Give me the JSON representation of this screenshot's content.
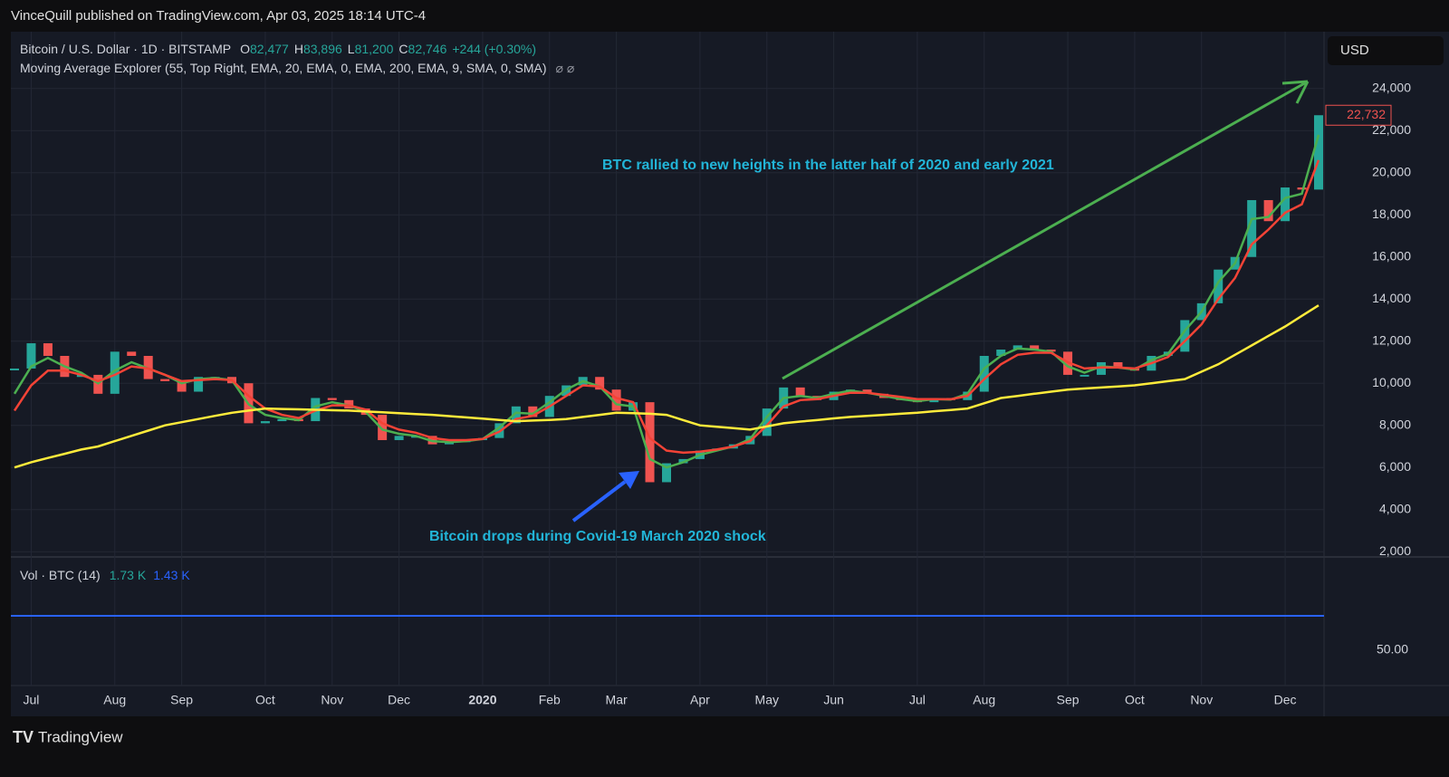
{
  "header": {
    "publisher": "VinceQuill published on TradingView.com, Apr 03, 2025 18:14 UTC-4"
  },
  "footer": {
    "brand": "TradingView"
  },
  "chart_data": {
    "type": "candlestick",
    "symbol": "Bitcoin / U.S. Dollar · 1D · BITSTAMP",
    "ohlc": [
      {
        "key": "O",
        "text": "82,477"
      },
      {
        "key": "H",
        "text": "83,896"
      },
      {
        "key": "L",
        "text": "81,200"
      },
      {
        "key": "C",
        "text": "82,746"
      }
    ],
    "change": "+244 (+0.30%)",
    "indicator": "Moving Average Explorer (55, Top Right, EMA, 20, EMA, 0, EMA, 200, EMA, 9, SMA, 0, SMA)",
    "currency": "USD",
    "last_price_label": "22,732",
    "annotations": [
      "BTC rallied to new heights in the latter half of 2020 and early 2021",
      "Bitcoin drops during Covid-19 March 2020 shock"
    ],
    "volume_pane": {
      "title": "Vol · BTC (14)",
      "values": [
        "1.73 K",
        "1.43 K"
      ],
      "axis_label": "50.00"
    },
    "categories": [
      null,
      "Jul",
      null,
      null,
      null,
      null,
      "Aug",
      null,
      null,
      null,
      "Sep",
      null,
      null,
      null,
      null,
      "Oct",
      null,
      null,
      null,
      "Nov",
      null,
      null,
      null,
      "Dec",
      null,
      null,
      null,
      null,
      "2020",
      null,
      null,
      null,
      "Feb",
      null,
      null,
      null,
      "Mar",
      null,
      null,
      null,
      null,
      "Apr",
      null,
      null,
      null,
      "May",
      null,
      null,
      null,
      "Jun",
      null,
      null,
      null,
      null,
      "Jul",
      null,
      null,
      null,
      "Aug",
      null,
      null,
      null,
      null,
      "Sep",
      null,
      null,
      null,
      "Oct",
      null,
      null,
      null,
      "Nov",
      null,
      null,
      null,
      null,
      "Dec",
      null,
      null
    ],
    "values": [
      10700,
      11900,
      11300,
      10300,
      10400,
      9500,
      11500,
      11300,
      10200,
      10100,
      9600,
      10300,
      10300,
      10000,
      8100,
      8200,
      8300,
      8200,
      9300,
      9200,
      8800,
      8500,
      7300,
      7500,
      7500,
      7100,
      7200,
      7300,
      7400,
      8100,
      8900,
      8400,
      9400,
      9900,
      10300,
      9700,
      8700,
      9100,
      5300,
      6200,
      6400,
      6800,
      6900,
      7100,
      7500,
      8800,
      9800,
      9400,
      9200,
      9600,
      9700,
      9500,
      9300,
      9200,
      9100,
      9300,
      9200,
      9600,
      11300,
      11600,
      11800,
      11600,
      11500,
      10400,
      10400,
      11000,
      10700,
      10600,
      11300,
      11500,
      13000,
      13800,
      15400,
      16000,
      18700,
      17700,
      19300,
      19200,
      22732
    ],
    "up_color": "#26a69a",
    "down_color": "#ef5350",
    "series": [
      {
        "name": "EMA 20",
        "color": "#4caf50",
        "values": [
          9500,
          10800,
          11200,
          10800,
          10500,
          10000,
          10600,
          11000,
          10700,
          10400,
          10000,
          10200,
          10250,
          10150,
          9000,
          8500,
          8350,
          8250,
          8900,
          9100,
          8950,
          8650,
          7800,
          7600,
          7500,
          7250,
          7200,
          7250,
          7350,
          7900,
          8600,
          8550,
          9100,
          9700,
          10100,
          9850,
          9000,
          8900,
          6400,
          6000,
          6250,
          6600,
          6800,
          7000,
          7350,
          8400,
          9300,
          9400,
          9300,
          9500,
          9650,
          9550,
          9400,
          9250,
          9150,
          9250,
          9220,
          9500,
          10700,
          11300,
          11650,
          11600,
          11500,
          10800,
          10500,
          10800,
          10750,
          10650,
          11100,
          11400,
          12500,
          13400,
          14800,
          15700,
          17800,
          17900,
          18800,
          19000,
          21800
        ]
      },
      {
        "name": "EMA 55",
        "color": "#f44336",
        "values": [
          8700,
          9900,
          10600,
          10600,
          10400,
          10100,
          10400,
          10800,
          10700,
          10400,
          10100,
          10150,
          10200,
          10150,
          9400,
          8800,
          8500,
          8350,
          8700,
          8950,
          8950,
          8750,
          8100,
          7800,
          7650,
          7400,
          7300,
          7300,
          7350,
          7700,
          8300,
          8450,
          8900,
          9400,
          9900,
          9850,
          9300,
          9100,
          7400,
          6800,
          6700,
          6750,
          6850,
          7000,
          7250,
          8000,
          8900,
          9200,
          9250,
          9400,
          9550,
          9550,
          9450,
          9350,
          9250,
          9250,
          9240,
          9400,
          10200,
          10900,
          11350,
          11450,
          11450,
          11000,
          10700,
          10750,
          10750,
          10700,
          10950,
          11250,
          12000,
          12800,
          14000,
          15000,
          16600,
          17300,
          18100,
          18500,
          20600
        ]
      },
      {
        "name": "EMA 200",
        "color": "#ffeb3b",
        "values": [
          6000,
          6250,
          6450,
          6650,
          6850,
          7000,
          7250,
          7500,
          7750,
          8000,
          8150,
          8300,
          8450,
          8600,
          8700,
          8800,
          8780,
          8760,
          8740,
          8720,
          8700,
          8660,
          8620,
          8580,
          8540,
          8500,
          8440,
          8380,
          8320,
          8260,
          8200,
          8230,
          8260,
          8300,
          8400,
          8500,
          8600,
          8580,
          8550,
          8500,
          8250,
          8000,
          7930,
          7870,
          7800,
          7950,
          8100,
          8180,
          8250,
          8330,
          8400,
          8450,
          8500,
          8550,
          8600,
          8670,
          8730,
          8800,
          9050,
          9300,
          9400,
          9500,
          9600,
          9700,
          9750,
          9800,
          9850,
          9900,
          10000,
          10100,
          10200,
          10550,
          10900,
          11350,
          11800,
          12250,
          12700,
          13200,
          13700
        ]
      }
    ],
    "ylim": [
      1750,
      26700
    ],
    "yticks": [
      {
        "value": 2000,
        "label": "2,000"
      },
      {
        "value": 4000,
        "label": "4,000"
      },
      {
        "value": 6000,
        "label": "6,000"
      },
      {
        "value": 8000,
        "label": "8,000"
      },
      {
        "value": 10000,
        "label": "10,000"
      },
      {
        "value": 12000,
        "label": "12,000"
      },
      {
        "value": 14000,
        "label": "14,000"
      },
      {
        "value": 16000,
        "label": "16,000"
      },
      {
        "value": 18000,
        "label": "18,000"
      },
      {
        "value": 20000,
        "label": "20,000"
      },
      {
        "value": 22000,
        "label": "22,000"
      },
      {
        "value": 24000,
        "label": "24,000"
      }
    ],
    "grid": true
  }
}
